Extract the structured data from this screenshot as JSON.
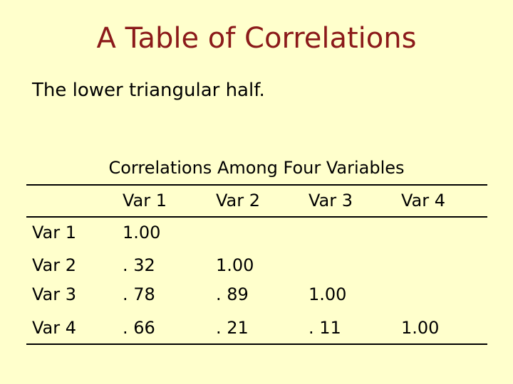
{
  "title": "A Table of Correlations",
  "subtitle": "The lower triangular half.",
  "table": {
    "caption": "Correlations Among Four Variables",
    "header": [
      "Var 1",
      "Var 2",
      "Var 3",
      "Var 4"
    ],
    "rows": [
      [
        "Var 1",
        "1.00"
      ],
      [
        "Var 2",
        ". 32",
        "1.00"
      ],
      [
        "Var 3",
        ". 78",
        ". 89",
        "1.00"
      ],
      [
        "Var 4",
        ". 66",
        ". 21",
        ". 11",
        "1.00"
      ]
    ]
  }
}
